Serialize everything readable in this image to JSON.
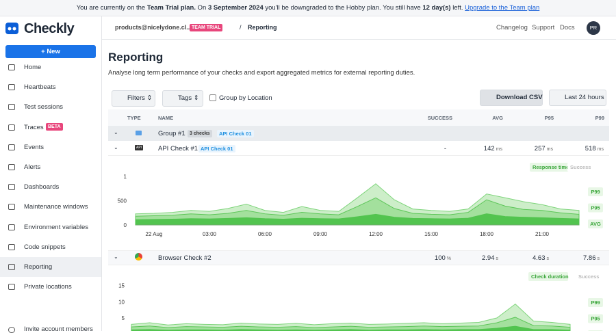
{
  "banner": {
    "parts": [
      "You are currently on the",
      "Team Trial plan.",
      "On",
      "3 September 2024",
      "you'll be downgraded to the Hobby plan. You still have",
      "12 day(s)",
      "left."
    ],
    "link": "Upgrade to the Team plan"
  },
  "sidebar": {
    "logo": "Checkly",
    "new_button": "New",
    "nav": [
      "Home",
      "Heartbeats",
      "Test sessions",
      "Traces",
      "Events",
      "Alerts",
      "Dashboards",
      "Maintenance windows",
      "Environment variables",
      "Code snippets",
      "Reporting",
      "Private locations"
    ],
    "nav_badge": "BETA",
    "invite": "Invite account members"
  },
  "header": {
    "account": "products@nicelydone.cl...",
    "plan_badge": "TEAM TRIAL",
    "separator": "/",
    "page": "Reporting",
    "links": [
      "Changelog",
      "Support",
      "Docs"
    ],
    "avatar": "PR"
  },
  "page": {
    "title": "Reporting",
    "subtitle": "Analyse long term performance of your checks and export aggregated metrics for external reporting duties."
  },
  "toolbar": {
    "filters": "Filters",
    "tags": "Tags",
    "group_by": "Group by Location",
    "download": "Download CSV",
    "range": "Last 24 hours"
  },
  "table": {
    "columns": [
      "TYPE",
      "NAME",
      "SUCCESS",
      "AVG",
      "P95",
      "P99"
    ],
    "rows": [
      {
        "name": "Group #1",
        "count": "3 checks",
        "tag": "API Check 01"
      },
      {
        "icon": "API",
        "name": "API Check #1",
        "tag": "API Check 01",
        "success": "-",
        "avg": {
          "value": 142,
          "unit": "ms"
        },
        "p95": {
          "value": 257,
          "unit": "ms"
        },
        "p99": {
          "value": 518,
          "unit": "ms"
        }
      },
      {
        "name": "Browser Check #2",
        "success": {
          "value": 100,
          "unit": "%"
        },
        "avg": {
          "value": 2.94,
          "unit": "s"
        },
        "p95": {
          "value": 4.63,
          "unit": "s"
        },
        "p99": {
          "value": 7.86,
          "unit": "s"
        }
      }
    ]
  },
  "chart_data": [
    {
      "type": "area",
      "legend_tags": [
        "Response time",
        "Success"
      ],
      "categories": [
        null,
        "22 Aug",
        null,
        null,
        "03:00",
        null,
        null,
        "06:00",
        null,
        null,
        "09:00",
        null,
        null,
        "12:00",
        null,
        null,
        "15:00",
        null,
        null,
        "18:00",
        null,
        null,
        "21:00",
        null,
        null
      ],
      "ylim": [
        0,
        1100
      ],
      "yticks": [
        0,
        500,
        {
          "value": 1000,
          "label": "1"
        }
      ],
      "series": [
        {
          "name": "P99",
          "color": "#cdeec9",
          "values": [
            230,
            240,
            260,
            300,
            280,
            340,
            430,
            300,
            260,
            380,
            300,
            280,
            560,
            850,
            520,
            330,
            300,
            280,
            330,
            640,
            560,
            480,
            420,
            330,
            300
          ]
        },
        {
          "name": "P95",
          "color": "#a3e09d",
          "values": [
            180,
            190,
            200,
            230,
            210,
            240,
            300,
            230,
            200,
            260,
            230,
            210,
            380,
            560,
            340,
            240,
            220,
            210,
            260,
            520,
            390,
            320,
            300,
            250,
            220
          ]
        },
        {
          "name": "AVG",
          "color": "#52c44f",
          "values": [
            110,
            115,
            120,
            130,
            125,
            135,
            150,
            130,
            120,
            140,
            130,
            125,
            170,
            220,
            160,
            135,
            130,
            125,
            140,
            230,
            175,
            160,
            150,
            135,
            125
          ]
        }
      ]
    },
    {
      "type": "area",
      "legend_tags": [
        "Check duration",
        "Success"
      ],
      "ylim": [
        0,
        16
      ],
      "yticks": [
        5,
        10,
        15
      ],
      "series": [
        {
          "name": "P99",
          "color": "#cdeec9",
          "values": [
            3,
            3.5,
            2.8,
            3.2,
            3,
            2.9,
            3.4,
            3.1,
            3,
            3.3,
            2.9,
            3.2,
            3.4,
            3,
            3.1,
            3.3,
            3.5,
            3.2,
            3.4,
            3.6,
            5,
            9.3,
            4,
            3.6,
            3
          ]
        },
        {
          "name": "P95",
          "color": "#a3e09d",
          "values": [
            2.2,
            2.5,
            2,
            2.3,
            2.2,
            2.1,
            2.4,
            2.2,
            2.1,
            2.3,
            2,
            2.2,
            2.4,
            2.1,
            2.2,
            2.3,
            2.5,
            2.3,
            2.4,
            2.5,
            3.5,
            5.2,
            2.6,
            2.5,
            2.1
          ]
        },
        {
          "name": "AVG",
          "color": "#52c44f",
          "values": [
            1.3,
            1.4,
            1.2,
            1.3,
            1.3,
            1.2,
            1.4,
            1.3,
            1.2,
            1.3,
            1.2,
            1.3,
            1.4,
            1.2,
            1.3,
            1.3,
            1.4,
            1.3,
            1.4,
            1.4,
            1.8,
            2.4,
            1.4,
            1.4,
            1.2
          ]
        }
      ]
    }
  ]
}
